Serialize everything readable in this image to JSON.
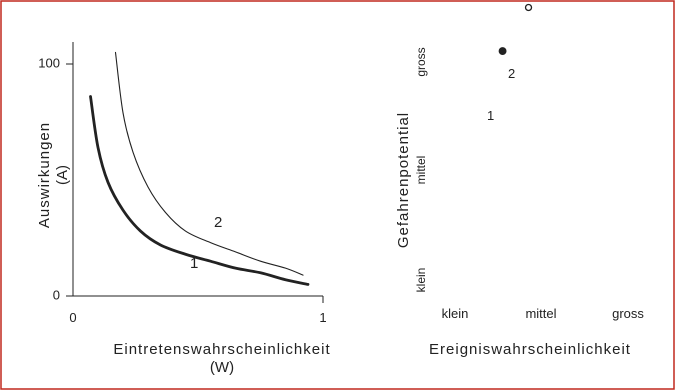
{
  "colors": {
    "frame": "#c0281e",
    "ink": "#222222",
    "background": "#ffffff"
  },
  "chart_data": [
    {
      "type": "line",
      "xlabel": "Eintretenswahrscheinlichkeit",
      "xlabel_sub": "(W)",
      "ylabel": "Auswirkungen",
      "ylabel_sub": "(A)",
      "xlim": [
        0,
        1
      ],
      "ylim": [
        0,
        100
      ],
      "x_ticks": [
        "0",
        "1"
      ],
      "y_ticks": [
        "0",
        "100"
      ],
      "grid": false,
      "series": [
        {
          "name": "1",
          "x": [
            0.07,
            0.1,
            0.14,
            0.2,
            0.27,
            0.35,
            0.45,
            0.55,
            0.65,
            0.75,
            0.85,
            0.94
          ],
          "y": [
            86,
            64,
            49,
            37,
            28,
            22,
            18,
            15,
            12,
            10,
            7,
            5
          ]
        },
        {
          "name": "2",
          "x": [
            0.17,
            0.2,
            0.24,
            0.3,
            0.37,
            0.45,
            0.55,
            0.65,
            0.75,
            0.85,
            0.92
          ],
          "y": [
            105,
            79,
            62,
            47,
            36,
            28,
            23,
            19,
            15,
            12,
            9
          ]
        }
      ]
    },
    {
      "type": "scatter",
      "xlabel": "Ereigniswahrscheinlichkeit",
      "ylabel": "Gefahrenpotential",
      "x_categories": [
        "klein",
        "mittel",
        "gross"
      ],
      "y_categories": [
        "klein",
        "mittel",
        "gross"
      ],
      "grid": false,
      "points": [
        {
          "label": "1",
          "x": 0.55,
          "y": 2.1,
          "filled": true
        },
        {
          "label": "2",
          "x": 0.85,
          "y": 2.5,
          "filled": false
        }
      ]
    }
  ]
}
